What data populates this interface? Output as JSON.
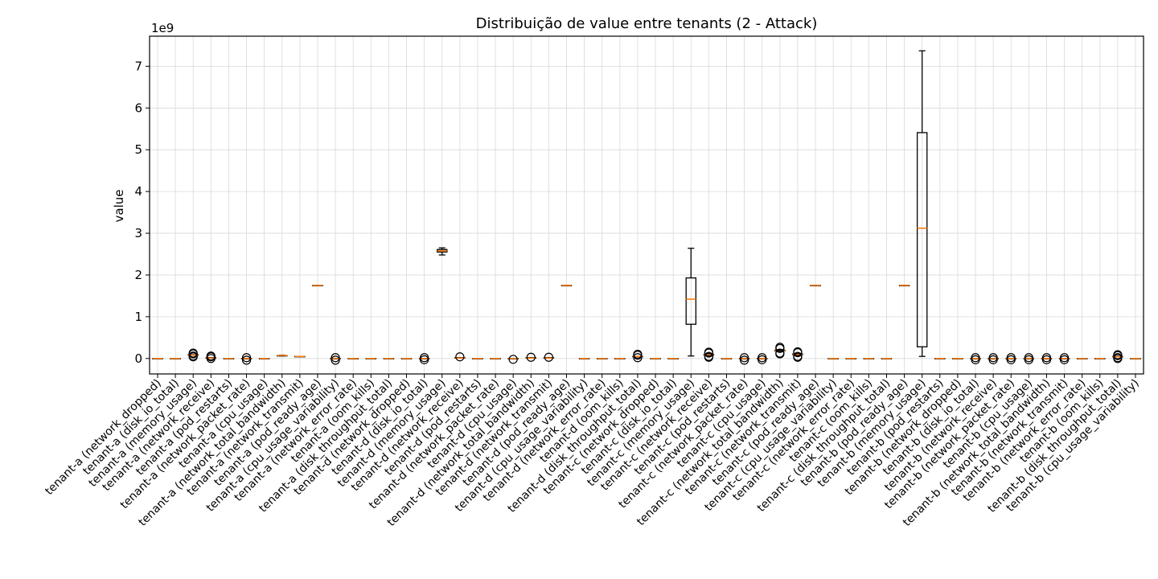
{
  "chart_data": {
    "type": "box",
    "title": "Distribuição de value entre tenants (2 - Attack)",
    "ylabel": "value",
    "y_multiplier_label": "1e9",
    "y_scale": 1000000000.0,
    "ylim": [
      -0.37,
      7.72
    ],
    "yticks": [
      0,
      1,
      2,
      3,
      4,
      5,
      6,
      7
    ],
    "yticklabels": [
      "0",
      "1",
      "2",
      "3",
      "4",
      "5",
      "6",
      "7"
    ],
    "grid": true,
    "colors": {
      "median": "#ff7f0e",
      "box": "#000000",
      "grid": "#d9d9d9"
    },
    "boxes": [
      {
        "label": "tenant-a (network_dropped)",
        "whislo": 0,
        "q1": 0,
        "med": 0,
        "q3": 0,
        "whishi": 0,
        "fliers": []
      },
      {
        "label": "tenant-a (disk_io_total)",
        "whislo": 0,
        "q1": 0,
        "med": 0,
        "q3": 0,
        "whishi": 0,
        "fliers": []
      },
      {
        "label": "tenant-a (memory_usage)",
        "whislo": 0.08,
        "q1": 0.08,
        "med": 0.08,
        "q3": 0.09,
        "whishi": 0.09,
        "fliers": [
          0.04,
          0.06,
          0.11,
          0.13
        ]
      },
      {
        "label": "tenant-a (network_receive)",
        "whislo": 0.01,
        "q1": 0.01,
        "med": 0.01,
        "q3": 0.02,
        "whishi": 0.02,
        "fliers": [
          0.0,
          0.04,
          0.06
        ]
      },
      {
        "label": "tenant-a (pod_restarts)",
        "whislo": 0,
        "q1": 0,
        "med": 0,
        "q3": 0,
        "whishi": 0,
        "fliers": []
      },
      {
        "label": "tenant-a (network_packet_rate)",
        "whislo": 0.0,
        "q1": 0.0,
        "med": 0.0,
        "q3": 0.0,
        "whishi": 0.0,
        "fliers": [
          -0.04,
          0.02
        ]
      },
      {
        "label": "tenant-a (cpu_usage)",
        "whislo": 0,
        "q1": 0,
        "med": 0,
        "q3": 0,
        "whishi": 0,
        "fliers": []
      },
      {
        "label": "tenant-a (network_total_bandwidth)",
        "whislo": 0.06,
        "q1": 0.07,
        "med": 0.07,
        "q3": 0.07,
        "whishi": 0.08,
        "fliers": []
      },
      {
        "label": "tenant-a (network_transmit)",
        "whislo": 0.05,
        "q1": 0.05,
        "med": 0.05,
        "q3": 0.05,
        "whishi": 0.05,
        "fliers": []
      },
      {
        "label": "tenant-a (pod_ready_age)",
        "whislo": 1.75,
        "q1": 1.75,
        "med": 1.75,
        "q3": 1.75,
        "whishi": 1.75,
        "fliers": []
      },
      {
        "label": "tenant-a (cpu_usage_variability)",
        "whislo": 0.0,
        "q1": 0.0,
        "med": 0.0,
        "q3": 0.0,
        "whishi": 0.0,
        "fliers": [
          -0.04,
          0.02
        ]
      },
      {
        "label": "tenant-a (network_error_rate)",
        "whislo": 0,
        "q1": 0,
        "med": 0,
        "q3": 0,
        "whishi": 0,
        "fliers": []
      },
      {
        "label": "tenant-a (oom_kills)",
        "whislo": 0,
        "q1": 0,
        "med": 0,
        "q3": 0,
        "whishi": 0,
        "fliers": []
      },
      {
        "label": "tenant-a (disk_throughput_total)",
        "whislo": 0,
        "q1": 0,
        "med": 0,
        "q3": 0,
        "whishi": 0,
        "fliers": []
      },
      {
        "label": "tenant-d (network_dropped)",
        "whislo": 0,
        "q1": 0,
        "med": 0,
        "q3": 0,
        "whishi": 0,
        "fliers": []
      },
      {
        "label": "tenant-d (disk_io_total)",
        "whislo": 0.0,
        "q1": 0.0,
        "med": 0.0,
        "q3": 0.0,
        "whishi": 0.0,
        "fliers": [
          -0.03,
          0.02
        ]
      },
      {
        "label": "tenant-d (memory_usage)",
        "whislo": 2.48,
        "q1": 2.55,
        "med": 2.58,
        "q3": 2.61,
        "whishi": 2.65,
        "fliers": []
      },
      {
        "label": "tenant-d (network_receive)",
        "whislo": 0.01,
        "q1": 0.01,
        "med": 0.01,
        "q3": 0.02,
        "whishi": 0.02,
        "fliers": [
          0.04
        ]
      },
      {
        "label": "tenant-d (pod_restarts)",
        "whislo": 0,
        "q1": 0,
        "med": 0,
        "q3": 0,
        "whishi": 0,
        "fliers": []
      },
      {
        "label": "tenant-d (network_packet_rate)",
        "whislo": 0,
        "q1": 0,
        "med": 0,
        "q3": 0,
        "whishi": 0,
        "fliers": []
      },
      {
        "label": "tenant-d (cpu_usage)",
        "whislo": 0.0,
        "q1": 0.0,
        "med": 0.0,
        "q3": 0.0,
        "whishi": 0.0,
        "fliers": [
          -0.02
        ]
      },
      {
        "label": "tenant-d (network_total_bandwidth)",
        "whislo": 0.01,
        "q1": 0.01,
        "med": 0.01,
        "q3": 0.02,
        "whishi": 0.02,
        "fliers": [
          0.03
        ]
      },
      {
        "label": "tenant-d (network_transmit)",
        "whislo": 0.01,
        "q1": 0.01,
        "med": 0.01,
        "q3": 0.02,
        "whishi": 0.02,
        "fliers": [
          0.03
        ]
      },
      {
        "label": "tenant-d (pod_ready_age)",
        "whislo": 1.75,
        "q1": 1.75,
        "med": 1.75,
        "q3": 1.75,
        "whishi": 1.75,
        "fliers": []
      },
      {
        "label": "tenant-d (cpu_usage_variability)",
        "whislo": 0,
        "q1": 0,
        "med": 0,
        "q3": 0,
        "whishi": 0,
        "fliers": []
      },
      {
        "label": "tenant-d (network_error_rate)",
        "whislo": 0,
        "q1": 0,
        "med": 0,
        "q3": 0,
        "whishi": 0,
        "fliers": []
      },
      {
        "label": "tenant-d (oom_kills)",
        "whislo": 0,
        "q1": 0,
        "med": 0,
        "q3": 0,
        "whishi": 0,
        "fliers": []
      },
      {
        "label": "tenant-d (disk_throughput_total)",
        "whislo": 0.05,
        "q1": 0.05,
        "med": 0.05,
        "q3": 0.05,
        "whishi": 0.05,
        "fliers": [
          0.02,
          0.08,
          0.1
        ]
      },
      {
        "label": "tenant-c (network_dropped)",
        "whislo": 0,
        "q1": 0,
        "med": 0,
        "q3": 0,
        "whishi": 0,
        "fliers": []
      },
      {
        "label": "tenant-c (disk_io_total)",
        "whislo": 0,
        "q1": 0,
        "med": 0,
        "q3": 0,
        "whishi": 0,
        "fliers": []
      },
      {
        "label": "tenant-c (memory_usage)",
        "whislo": 0.06,
        "q1": 0.82,
        "med": 1.42,
        "q3": 1.93,
        "whishi": 2.64,
        "fliers": []
      },
      {
        "label": "tenant-c (network_receive)",
        "whislo": 0.07,
        "q1": 0.08,
        "med": 0.09,
        "q3": 0.1,
        "whishi": 0.11,
        "fliers": [
          0.03,
          0.05,
          0.13,
          0.15
        ]
      },
      {
        "label": "tenant-c (pod_restarts)",
        "whislo": 0,
        "q1": 0,
        "med": 0,
        "q3": 0,
        "whishi": 0,
        "fliers": []
      },
      {
        "label": "tenant-c (network_packet_rate)",
        "whislo": 0.0,
        "q1": 0.0,
        "med": 0.0,
        "q3": 0.0,
        "whishi": 0.0,
        "fliers": [
          -0.04,
          0.02
        ]
      },
      {
        "label": "tenant-c (cpu_usage)",
        "whislo": 0.0,
        "q1": 0.0,
        "med": 0.0,
        "q3": 0.0,
        "whishi": 0.0,
        "fliers": [
          -0.03,
          0.02
        ]
      },
      {
        "label": "tenant-c (network_total_bandwidth)",
        "whislo": 0.17,
        "q1": 0.18,
        "med": 0.19,
        "q3": 0.2,
        "whishi": 0.21,
        "fliers": [
          0.11,
          0.13,
          0.24,
          0.27
        ]
      },
      {
        "label": "tenant-c (network_transmit)",
        "whislo": 0.08,
        "q1": 0.09,
        "med": 0.1,
        "q3": 0.11,
        "whishi": 0.12,
        "fliers": [
          0.03,
          0.05,
          0.14,
          0.16
        ]
      },
      {
        "label": "tenant-c (pod_ready_age)",
        "whislo": 1.75,
        "q1": 1.75,
        "med": 1.75,
        "q3": 1.75,
        "whishi": 1.75,
        "fliers": []
      },
      {
        "label": "tenant-c (cpu_usage_variability)",
        "whislo": 0,
        "q1": 0,
        "med": 0,
        "q3": 0,
        "whishi": 0,
        "fliers": []
      },
      {
        "label": "tenant-c (network_error_rate)",
        "whislo": 0,
        "q1": 0,
        "med": 0,
        "q3": 0,
        "whishi": 0,
        "fliers": []
      },
      {
        "label": "tenant-c (oom_kills)",
        "whislo": 0,
        "q1": 0,
        "med": 0,
        "q3": 0,
        "whishi": 0,
        "fliers": []
      },
      {
        "label": "tenant-c (disk_throughput_total)",
        "whislo": 0,
        "q1": 0,
        "med": 0,
        "q3": 0,
        "whishi": 0,
        "fliers": []
      },
      {
        "label": "tenant-b (pod_ready_age)",
        "whislo": 1.75,
        "q1": 1.75,
        "med": 1.75,
        "q3": 1.75,
        "whishi": 1.75,
        "fliers": []
      },
      {
        "label": "tenant-b (memory_usage)",
        "whislo": 0.05,
        "q1": 0.28,
        "med": 3.12,
        "q3": 5.41,
        "whishi": 7.37,
        "fliers": []
      },
      {
        "label": "tenant-b (pod_restarts)",
        "whislo": 0,
        "q1": 0,
        "med": 0,
        "q3": 0,
        "whishi": 0,
        "fliers": []
      },
      {
        "label": "tenant-b (network_dropped)",
        "whislo": 0,
        "q1": 0,
        "med": 0,
        "q3": 0,
        "whishi": 0,
        "fliers": []
      },
      {
        "label": "tenant-b (disk_io_total)",
        "whislo": 0.0,
        "q1": 0.0,
        "med": 0.0,
        "q3": 0.0,
        "whishi": 0.0,
        "fliers": [
          -0.03,
          0.02
        ]
      },
      {
        "label": "tenant-b (network_receive)",
        "whislo": 0.0,
        "q1": 0.0,
        "med": 0.0,
        "q3": 0.0,
        "whishi": 0.0,
        "fliers": [
          -0.03,
          0.02
        ]
      },
      {
        "label": "tenant-b (network_packet_rate)",
        "whislo": 0.0,
        "q1": 0.0,
        "med": 0.0,
        "q3": 0.0,
        "whishi": 0.0,
        "fliers": [
          -0.03,
          0.02
        ]
      },
      {
        "label": "tenant-b (cpu_usage)",
        "whislo": 0.0,
        "q1": 0.0,
        "med": 0.0,
        "q3": 0.0,
        "whishi": 0.0,
        "fliers": [
          -0.03,
          0.02
        ]
      },
      {
        "label": "tenant-b (network_total_bandwidth)",
        "whislo": 0.0,
        "q1": 0.0,
        "med": 0.0,
        "q3": 0.0,
        "whishi": 0.0,
        "fliers": [
          -0.03,
          0.02
        ]
      },
      {
        "label": "tenant-b (network_transmit)",
        "whislo": 0.0,
        "q1": 0.0,
        "med": 0.0,
        "q3": 0.0,
        "whishi": 0.0,
        "fliers": [
          -0.03,
          0.02
        ]
      },
      {
        "label": "tenant-b (network_error_rate)",
        "whislo": 0,
        "q1": 0,
        "med": 0,
        "q3": 0,
        "whishi": 0,
        "fliers": []
      },
      {
        "label": "tenant-b (oom_kills)",
        "whislo": 0,
        "q1": 0,
        "med": 0,
        "q3": 0,
        "whishi": 0,
        "fliers": []
      },
      {
        "label": "tenant-b (disk_throughput_total)",
        "whislo": 0.04,
        "q1": 0.04,
        "med": 0.04,
        "q3": 0.05,
        "whishi": 0.05,
        "fliers": [
          0.0,
          0.02,
          0.07,
          0.09
        ]
      },
      {
        "label": "tenant-b (cpu_usage_variability)",
        "whislo": 0,
        "q1": 0,
        "med": 0,
        "q3": 0,
        "whishi": 0,
        "fliers": []
      }
    ]
  }
}
